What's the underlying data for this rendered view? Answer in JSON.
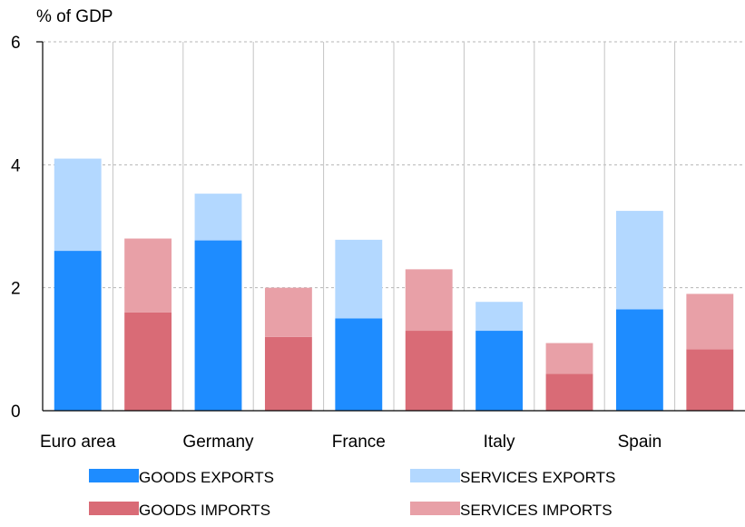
{
  "chart_data": {
    "type": "bar",
    "ylabel": "% of GDP",
    "ylim": [
      0,
      6
    ],
    "yticks": [
      0,
      2,
      4,
      6
    ],
    "grid": true,
    "categories": [
      "Euro area",
      "Germany",
      "France",
      "Italy",
      "Spain"
    ],
    "bar_groups": [
      "exports",
      "imports"
    ],
    "series": [
      {
        "name": "GOODS EXPORTS",
        "group": "exports",
        "color": "#1e8cff",
        "values": [
          2.6,
          2.77,
          1.5,
          1.3,
          1.65
        ]
      },
      {
        "name": "SERVICES EXPORTS",
        "group": "exports",
        "color": "#b3d8ff",
        "values": [
          1.5,
          0.76,
          1.28,
          0.47,
          1.6
        ]
      },
      {
        "name": "GOODS IMPORTS",
        "group": "imports",
        "color": "#d96b76",
        "values": [
          1.6,
          1.2,
          1.3,
          0.6,
          1.0
        ]
      },
      {
        "name": "SERVICES IMPORTS",
        "group": "imports",
        "color": "#e8a0a7",
        "values": [
          1.2,
          0.8,
          1.0,
          0.5,
          0.9
        ]
      }
    ],
    "legend_position": "bottom"
  }
}
